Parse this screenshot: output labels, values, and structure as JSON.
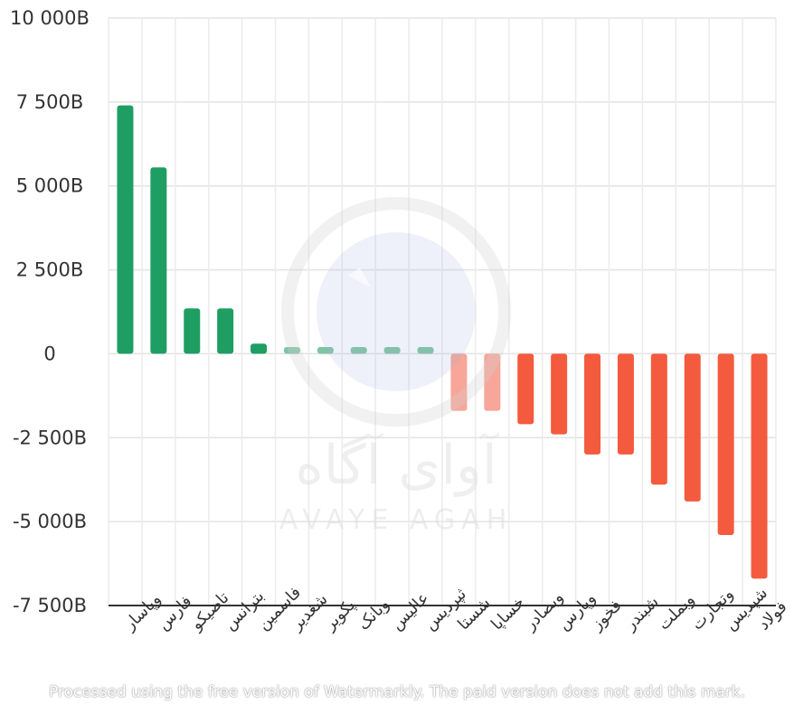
{
  "chart_data": {
    "type": "bar",
    "title": "",
    "xlabel": "",
    "ylabel": "",
    "ylim": [
      -7500,
      10000
    ],
    "yticks": [
      10000,
      7500,
      5000,
      2500,
      0,
      -2500,
      -5000,
      -7500
    ],
    "ytick_labels": [
      "10 000B",
      "7 500B",
      "5 000B",
      "2 500B",
      "0",
      "-2 500B",
      "-5 000B",
      "-7 500B"
    ],
    "grid": true,
    "categories": [
      "وپاسار",
      "فارس",
      "تاصیکو",
      "بترانس",
      "فاسمین",
      "شغدیر",
      "پکویر",
      "وبانک",
      "عالیس",
      "ثپردیس",
      "شستا",
      "خساپا",
      "وبصادر",
      "وپارس",
      "فخوز",
      "شبندر",
      "وبملت",
      "وتجارت",
      "شپدیس",
      "فولاد"
    ],
    "values": [
      7400,
      5550,
      1350,
      1350,
      300,
      200,
      200,
      200,
      200,
      200,
      -1700,
      -1700,
      -2100,
      -2400,
      -3000,
      -3000,
      -3900,
      -4400,
      -5400,
      -6700
    ],
    "colors": {
      "positive": "#1e9e63",
      "positive_small": "#7fc4a4",
      "negative": "#f45a3e",
      "negative_light": "#f7a699"
    }
  },
  "watermark": {
    "persian": "آوای آگاه",
    "latin": "AVAYE AGAH"
  },
  "footer_note": "Processed using the free version of Watermarkly. The paid version does not add this mark."
}
